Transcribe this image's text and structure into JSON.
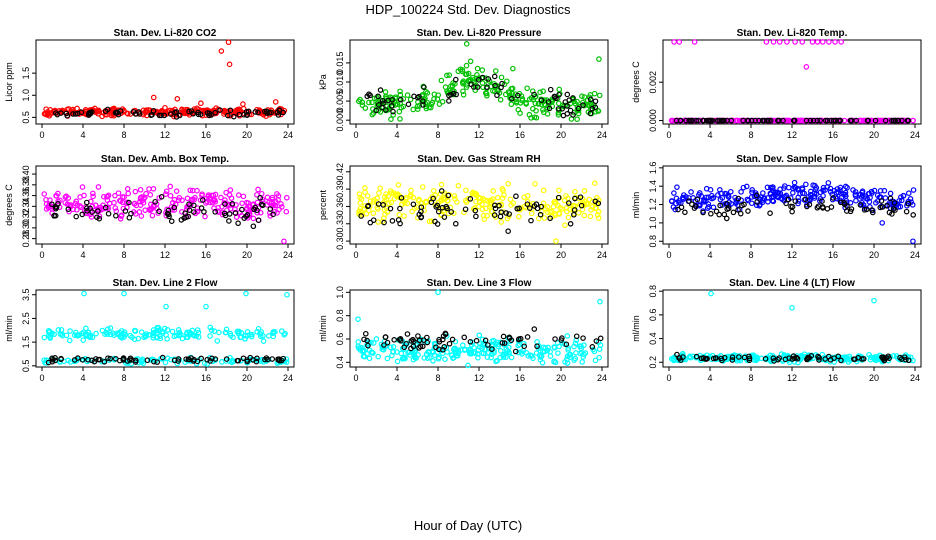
{
  "title": "HDP_100224  Std. Dev. Diagnostics",
  "xlabel": "Hour of Day (UTC)",
  "chart_data": [
    {
      "type": "scatter",
      "title": "Stan. Dev. Li-820 CO2",
      "ylabel": "Licor ppm",
      "xlim": [
        0,
        24
      ],
      "ylim": [
        0.35,
        2.25
      ],
      "xticks": [
        0,
        4,
        8,
        12,
        16,
        20,
        24
      ],
      "yticks": [
        0.5,
        1.0,
        1.5
      ],
      "ytick_labels": [
        "0.5",
        "1.0",
        "1.5"
      ],
      "color": "#ff0000",
      "base": 0.62,
      "spread": 0.07,
      "ref_base": 0.6,
      "ref_spread": 0.06,
      "outliers": [
        {
          "x": 10.9,
          "y": 0.95
        },
        {
          "x": 11.7,
          "y": 0.65
        },
        {
          "x": 13.2,
          "y": 0.92
        },
        {
          "x": 15.5,
          "y": 0.82
        },
        {
          "x": 17.5,
          "y": 2.0
        },
        {
          "x": 18.2,
          "y": 2.2
        },
        {
          "x": 18.3,
          "y": 1.7
        },
        {
          "x": 19.6,
          "y": 0.8
        },
        {
          "x": 22.8,
          "y": 0.85
        }
      ]
    },
    {
      "type": "scatter",
      "title": "Stan. Dev. Li-820 Pressure",
      "ylabel": "kPa",
      "xlim": [
        0,
        24
      ],
      "ylim": [
        -0.001,
        0.021
      ],
      "xticks": [
        0,
        4,
        8,
        12,
        16,
        20,
        24
      ],
      "yticks": [
        0.0,
        0.005,
        0.01,
        0.015
      ],
      "ytick_labels": [
        "0.000",
        "0.005",
        "0.010",
        "0.015"
      ],
      "color": "#00c000",
      "base": 0.004,
      "spread": 0.003,
      "ref_base": 0.004,
      "ref_spread": 0.003,
      "hump": {
        "center": 11.5,
        "width": 3.5,
        "height": 0.007
      },
      "outliers": [
        {
          "x": 10.8,
          "y": 0.02
        },
        {
          "x": 15.3,
          "y": 0.0135
        },
        {
          "x": 23.7,
          "y": 0.016
        }
      ]
    },
    {
      "type": "scatter",
      "title": "Stan. Dev. Li-820 Temp.",
      "ylabel": "degrees C",
      "xlim": [
        0,
        24
      ],
      "ylim": [
        -0.00018,
        0.0042
      ],
      "xticks": [
        0,
        4,
        8,
        12,
        16,
        20,
        24
      ],
      "yticks": [
        0.0,
        0.002
      ],
      "ytick_labels": [
        "0.000",
        "0.002"
      ],
      "color": "#ff00ff",
      "base": 0.0,
      "spread": 0.0,
      "ref_base": 0.0,
      "ref_spread": 0.0,
      "outliers": [
        {
          "x": 0.5,
          "y": 0.0041
        },
        {
          "x": 1.0,
          "y": 0.0041
        },
        {
          "x": 2.5,
          "y": 0.0041
        },
        {
          "x": 9.5,
          "y": 0.0041
        },
        {
          "x": 10.2,
          "y": 0.0041
        },
        {
          "x": 10.8,
          "y": 0.0041
        },
        {
          "x": 11.5,
          "y": 0.0041
        },
        {
          "x": 12.3,
          "y": 0.0041
        },
        {
          "x": 13.0,
          "y": 0.0041
        },
        {
          "x": 13.4,
          "y": 0.0028
        },
        {
          "x": 14.0,
          "y": 0.0041
        },
        {
          "x": 14.5,
          "y": 0.0041
        },
        {
          "x": 15.0,
          "y": 0.0041
        },
        {
          "x": 15.6,
          "y": 0.0041
        },
        {
          "x": 16.2,
          "y": 0.0041
        },
        {
          "x": 16.8,
          "y": 0.0041
        }
      ]
    },
    {
      "type": "scatter",
      "title": "Stan. Dev. Amb. Box Temp.",
      "ylabel": "degrees C",
      "xlim": [
        0,
        24
      ],
      "ylim": [
        0.27,
        0.415
      ],
      "xticks": [
        0,
        4,
        8,
        12,
        16,
        20,
        24
      ],
      "yticks": [
        0.28,
        0.3,
        0.32,
        0.34,
        0.36,
        0.38,
        0.4
      ],
      "ytick_labels": [
        "0.28",
        "0.30",
        "0.32",
        "0.34",
        "0.36",
        "0.38",
        "0.40"
      ],
      "color": "#ff00ff",
      "base": 0.345,
      "spread": 0.025,
      "ref_base": 0.33,
      "ref_spread": 0.02,
      "outliers": [
        {
          "x": 23.6,
          "y": 0.275
        }
      ]
    },
    {
      "type": "scatter",
      "title": "Stan. Dev. Gas Stream RH",
      "ylabel": "percent",
      "xlim": [
        0,
        24
      ],
      "ylim": [
        0.295,
        0.43
      ],
      "xticks": [
        0,
        4,
        8,
        12,
        16,
        20,
        24
      ],
      "yticks": [
        0.3,
        0.33,
        0.36,
        0.39,
        0.42
      ],
      "ytick_labels": [
        "0.30",
        "0.33",
        "0.36",
        "0.39",
        "0.42"
      ],
      "color": "#ffff00",
      "base": 0.365,
      "spread": 0.025,
      "ref_base": 0.355,
      "ref_spread": 0.025,
      "outliers": [
        {
          "x": 19.5,
          "y": 0.3
        }
      ]
    },
    {
      "type": "scatter",
      "title": "Stan. Dev. Sample Flow",
      "ylabel": "ml/min",
      "xlim": [
        0,
        24
      ],
      "ylim": [
        0.77,
        1.62
      ],
      "xticks": [
        0,
        4,
        8,
        12,
        16,
        20,
        24
      ],
      "yticks": [
        0.8,
        1.0,
        1.2,
        1.4,
        1.6
      ],
      "ytick_labels": [
        "0.8",
        "1.0",
        "1.2",
        "1.4",
        "1.6"
      ],
      "color": "#0000ff",
      "base": 1.25,
      "spread": 0.1,
      "ref_base": 1.15,
      "ref_spread": 0.08,
      "hump": {
        "center": 13,
        "width": 5,
        "height": 0.08
      },
      "outliers": [
        {
          "x": 23.8,
          "y": 0.8
        },
        {
          "x": 20.8,
          "y": 1.0
        }
      ]
    },
    {
      "type": "scatter",
      "title": "Stan. Dev. Line 2 Flow",
      "ylabel": "ml/min",
      "xlim": [
        0,
        24
      ],
      "ylim": [
        0.45,
        3.7
      ],
      "xticks": [
        0,
        4,
        8,
        12,
        16,
        20,
        24
      ],
      "yticks": [
        0.5,
        1.5,
        2.5,
        3.5
      ],
      "ytick_labels": [
        "0.5",
        "1.5",
        "2.5",
        "3.5"
      ],
      "color": "#00ffff",
      "base": 1.85,
      "spread": 0.2,
      "ref_base": 0.75,
      "ref_spread": 0.1,
      "low_band": {
        "y": 0.7,
        "spread": 0.1
      },
      "outliers": [
        {
          "x": 4.1,
          "y": 3.55
        },
        {
          "x": 8.0,
          "y": 3.55
        },
        {
          "x": 12.1,
          "y": 3.0
        },
        {
          "x": 16.0,
          "y": 3.0
        },
        {
          "x": 19.9,
          "y": 3.55
        },
        {
          "x": 23.9,
          "y": 3.5
        }
      ]
    },
    {
      "type": "scatter",
      "title": "Stan. Dev. Line 3 Flow",
      "ylabel": "ml/min",
      "xlim": [
        0,
        24
      ],
      "ylim": [
        0.36,
        1.02
      ],
      "xticks": [
        0,
        4,
        8,
        12,
        16,
        20,
        24
      ],
      "yticks": [
        0.4,
        0.6,
        0.8,
        1.0
      ],
      "ytick_labels": [
        "0.4",
        "0.6",
        "0.8",
        "1.0"
      ],
      "color": "#00ffff",
      "base": 0.5,
      "spread": 0.09,
      "ref_base": 0.58,
      "ref_spread": 0.07,
      "outliers": [
        {
          "x": 8.0,
          "y": 1.0
        },
        {
          "x": 23.8,
          "y": 0.92
        },
        {
          "x": 0.2,
          "y": 0.77
        }
      ]
    },
    {
      "type": "scatter",
      "title": "Stan. Dev. Line 4 (LT) Flow",
      "ylabel": "ml/min",
      "xlim": [
        0,
        24
      ],
      "ylim": [
        0.16,
        0.81
      ],
      "xticks": [
        0,
        4,
        8,
        12,
        16,
        20,
        24
      ],
      "yticks": [
        0.2,
        0.4,
        0.6,
        0.8
      ],
      "ytick_labels": [
        "0.2",
        "0.4",
        "0.6",
        "0.8"
      ],
      "color": "#00ffff",
      "base": 0.235,
      "spread": 0.025,
      "ref_base": 0.235,
      "ref_spread": 0.02,
      "outliers": [
        {
          "x": 4.1,
          "y": 0.78
        },
        {
          "x": 12.0,
          "y": 0.66
        },
        {
          "x": 20.0,
          "y": 0.72
        }
      ]
    }
  ]
}
